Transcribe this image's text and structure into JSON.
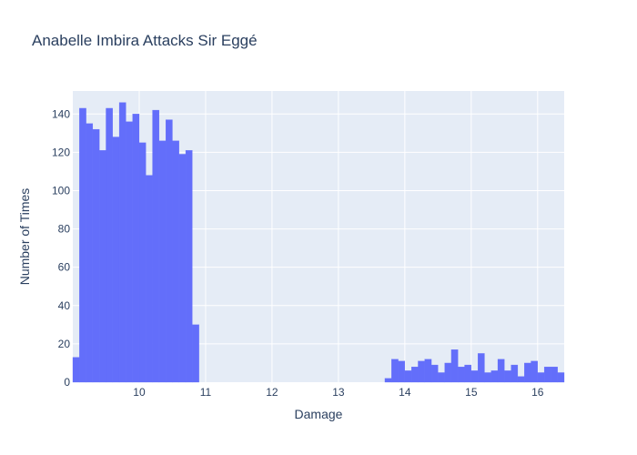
{
  "chart_data": {
    "type": "bar",
    "title": "Anabelle Imbira Attacks Sir Eggé",
    "xlabel": "Damage",
    "ylabel": "Number of Times",
    "xlim": [
      9.0,
      16.4
    ],
    "ylim": [
      0,
      152
    ],
    "bin_width": 0.1,
    "x_ticks": [
      10,
      11,
      12,
      13,
      14,
      15,
      16
    ],
    "y_ticks": [
      0,
      20,
      40,
      60,
      80,
      100,
      120,
      140
    ],
    "grid": true,
    "legend": "none",
    "bar_color": "#636efa",
    "plot_bg": "#e5ecf6",
    "bins": [
      {
        "x": 9.0,
        "count": 13
      },
      {
        "x": 9.1,
        "count": 143
      },
      {
        "x": 9.2,
        "count": 135
      },
      {
        "x": 9.3,
        "count": 132
      },
      {
        "x": 9.4,
        "count": 121
      },
      {
        "x": 9.5,
        "count": 143
      },
      {
        "x": 9.6,
        "count": 128
      },
      {
        "x": 9.7,
        "count": 146
      },
      {
        "x": 9.8,
        "count": 136
      },
      {
        "x": 9.9,
        "count": 140
      },
      {
        "x": 10.0,
        "count": 125
      },
      {
        "x": 10.1,
        "count": 108
      },
      {
        "x": 10.2,
        "count": 142
      },
      {
        "x": 10.3,
        "count": 126
      },
      {
        "x": 10.4,
        "count": 137
      },
      {
        "x": 10.5,
        "count": 126
      },
      {
        "x": 10.6,
        "count": 119
      },
      {
        "x": 10.7,
        "count": 121
      },
      {
        "x": 10.8,
        "count": 30
      },
      {
        "x": 13.7,
        "count": 2
      },
      {
        "x": 13.8,
        "count": 12
      },
      {
        "x": 13.9,
        "count": 11
      },
      {
        "x": 14.0,
        "count": 6
      },
      {
        "x": 14.1,
        "count": 8
      },
      {
        "x": 14.2,
        "count": 11
      },
      {
        "x": 14.3,
        "count": 12
      },
      {
        "x": 14.4,
        "count": 9
      },
      {
        "x": 14.5,
        "count": 5
      },
      {
        "x": 14.6,
        "count": 10
      },
      {
        "x": 14.7,
        "count": 17
      },
      {
        "x": 14.8,
        "count": 8
      },
      {
        "x": 14.9,
        "count": 9
      },
      {
        "x": 15.0,
        "count": 6
      },
      {
        "x": 15.1,
        "count": 15
      },
      {
        "x": 15.2,
        "count": 5
      },
      {
        "x": 15.3,
        "count": 6
      },
      {
        "x": 15.4,
        "count": 12
      },
      {
        "x": 15.5,
        "count": 6
      },
      {
        "x": 15.6,
        "count": 9
      },
      {
        "x": 15.7,
        "count": 3
      },
      {
        "x": 15.8,
        "count": 10
      },
      {
        "x": 15.9,
        "count": 11
      },
      {
        "x": 16.0,
        "count": 5
      },
      {
        "x": 16.1,
        "count": 8
      },
      {
        "x": 16.2,
        "count": 8
      },
      {
        "x": 16.3,
        "count": 5
      }
    ]
  }
}
